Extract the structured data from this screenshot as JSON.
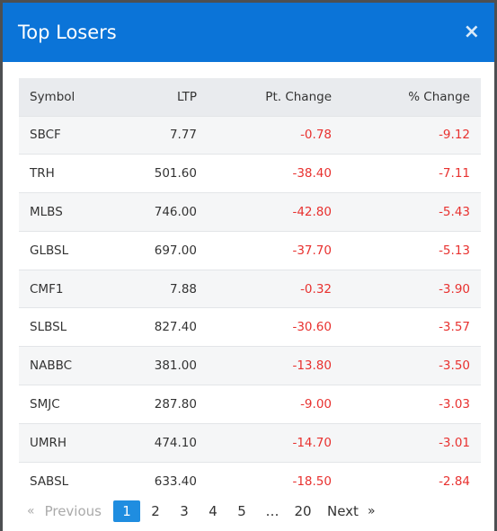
{
  "modal": {
    "title": "Top Losers",
    "close_label": "×"
  },
  "table": {
    "headers": {
      "symbol": "Symbol",
      "ltp": "LTP",
      "pt_change": "Pt. Change",
      "pct_change": "% Change"
    },
    "rows": [
      {
        "symbol": "SBCF",
        "ltp": "7.77",
        "pt": "-0.78",
        "pct": "-9.12"
      },
      {
        "symbol": "TRH",
        "ltp": "501.60",
        "pt": "-38.40",
        "pct": "-7.11"
      },
      {
        "symbol": "MLBS",
        "ltp": "746.00",
        "pt": "-42.80",
        "pct": "-5.43"
      },
      {
        "symbol": "GLBSL",
        "ltp": "697.00",
        "pt": "-37.70",
        "pct": "-5.13"
      },
      {
        "symbol": "CMF1",
        "ltp": "7.88",
        "pt": "-0.32",
        "pct": "-3.90"
      },
      {
        "symbol": "SLBSL",
        "ltp": "827.40",
        "pt": "-30.60",
        "pct": "-3.57"
      },
      {
        "symbol": "NABBC",
        "ltp": "381.00",
        "pt": "-13.80",
        "pct": "-3.50"
      },
      {
        "symbol": "SMJC",
        "ltp": "287.80",
        "pt": "-9.00",
        "pct": "-3.03"
      },
      {
        "symbol": "UMRH",
        "ltp": "474.10",
        "pt": "-14.70",
        "pct": "-3.01"
      },
      {
        "symbol": "SABSL",
        "ltp": "633.40",
        "pt": "-18.50",
        "pct": "-2.84"
      }
    ]
  },
  "pagination": {
    "prev_arrow": "«",
    "prev_label": "Previous",
    "pages": [
      "1",
      "2",
      "3",
      "4",
      "5"
    ],
    "ellipsis": "…",
    "last_page": "20",
    "next_label": "Next",
    "next_arrow": "»",
    "active_page": "1"
  },
  "colors": {
    "header_bg": "#0b74d8",
    "negative": "#e8312f",
    "active_page_bg": "#1f8de0"
  }
}
